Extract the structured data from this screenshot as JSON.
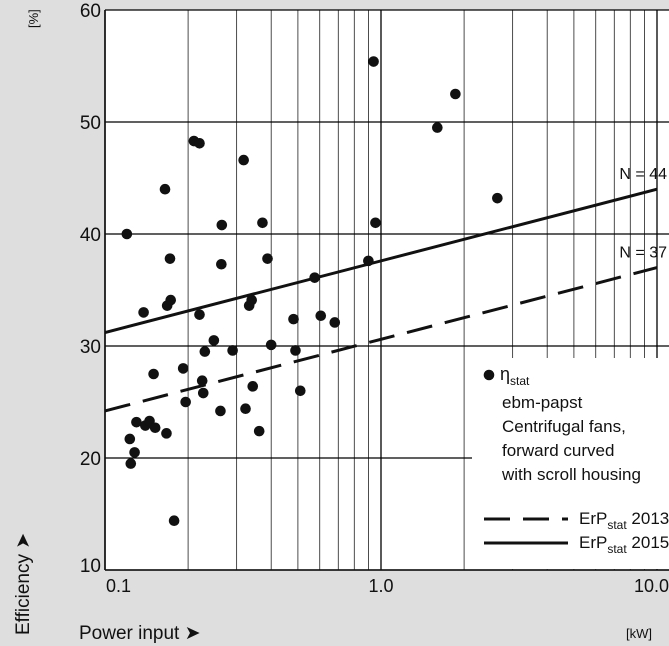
{
  "chart_data": {
    "type": "scatter",
    "xlabel": "Power input ➤",
    "ylabel": "Efficiency ➤",
    "x_unit": "[kW]",
    "y_unit": "[%]",
    "x_scale": "log",
    "xlim": [
      0.1,
      10.0
    ],
    "ylim": [
      10,
      60
    ],
    "x_tick_labels": [
      "0.1",
      "1.0",
      "10.0"
    ],
    "x_ticks": [
      0.1,
      1.0,
      10.0
    ],
    "y_ticks": [
      10,
      20,
      30,
      40,
      50,
      60
    ],
    "grid": true,
    "legend_position": "bottom-right",
    "series": [
      {
        "name": "ηstat ebm-papst Centrifugal fans, forward curved with scroll housing",
        "kind": "points",
        "points": [
          [
            0.12,
            40.0
          ],
          [
            0.123,
            21.7
          ],
          [
            0.124,
            19.5
          ],
          [
            0.128,
            20.5
          ],
          [
            0.13,
            23.2
          ],
          [
            0.138,
            33.0
          ],
          [
            0.14,
            22.9
          ],
          [
            0.145,
            23.3
          ],
          [
            0.15,
            27.5
          ],
          [
            0.152,
            22.7
          ],
          [
            0.165,
            44.0
          ],
          [
            0.167,
            22.2
          ],
          [
            0.168,
            33.6
          ],
          [
            0.172,
            37.8
          ],
          [
            0.173,
            34.1
          ],
          [
            0.178,
            14.4
          ],
          [
            0.192,
            28.0
          ],
          [
            0.196,
            25.0
          ],
          [
            0.21,
            48.3
          ],
          [
            0.22,
            48.1
          ],
          [
            0.22,
            32.8
          ],
          [
            0.225,
            26.9
          ],
          [
            0.227,
            25.8
          ],
          [
            0.23,
            29.5
          ],
          [
            0.248,
            30.5
          ],
          [
            0.262,
            24.2
          ],
          [
            0.264,
            37.3
          ],
          [
            0.265,
            40.8
          ],
          [
            0.29,
            29.6
          ],
          [
            0.318,
            46.6
          ],
          [
            0.323,
            24.4
          ],
          [
            0.333,
            33.6
          ],
          [
            0.34,
            34.1
          ],
          [
            0.343,
            26.4
          ],
          [
            0.362,
            22.4
          ],
          [
            0.372,
            41.0
          ],
          [
            0.388,
            37.8
          ],
          [
            0.4,
            30.1
          ],
          [
            0.482,
            32.4
          ],
          [
            0.49,
            29.6
          ],
          [
            0.51,
            26.0
          ],
          [
            0.575,
            36.1
          ],
          [
            0.605,
            32.7
          ],
          [
            0.68,
            32.1
          ],
          [
            0.9,
            37.6
          ],
          [
            0.94,
            55.4
          ],
          [
            0.955,
            41.0
          ],
          [
            1.6,
            49.5
          ],
          [
            1.86,
            52.5
          ],
          [
            2.64,
            43.2
          ]
        ]
      },
      {
        "name": "ErPstat 2015",
        "kind": "line",
        "style": "solid",
        "end_label": "N = 44",
        "points": [
          [
            0.1,
            31.2
          ],
          [
            10.0,
            44.0
          ]
        ]
      },
      {
        "name": "ErPstat 2013",
        "kind": "line",
        "style": "dashed",
        "end_label": "N = 37",
        "points": [
          [
            0.1,
            24.2
          ],
          [
            10.0,
            37.0
          ]
        ]
      }
    ],
    "legend": {
      "marker_entry": {
        "symbol": "η",
        "subscript": "stat",
        "lines": [
          "ebm-papst",
          "Centrifugal fans,",
          "forward curved",
          "with scroll housing"
        ]
      },
      "line_entries": [
        {
          "base": "ErP",
          "subscript": "stat",
          "year": "2013",
          "style": "dashed"
        },
        {
          "base": "ErP",
          "subscript": "stat",
          "year": "2015",
          "style": "solid"
        }
      ]
    },
    "colors": {
      "plot_bg": "#ffffff",
      "frame_bg": "#dedede",
      "ink": "#111111",
      "grid": "#000000"
    }
  }
}
